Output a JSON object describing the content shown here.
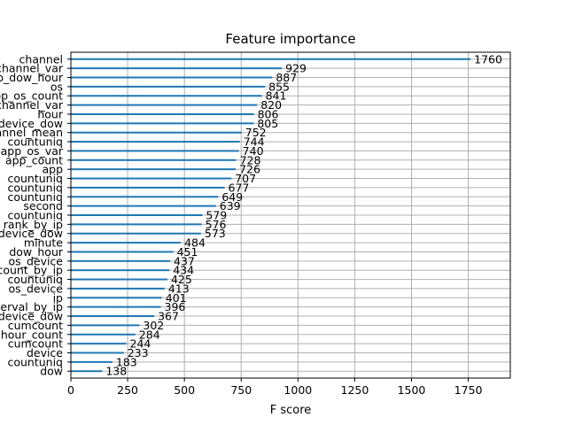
{
  "chart_data": {
    "type": "bar",
    "orientation": "horizontal",
    "title": "Feature importance",
    "xlabel": "F score",
    "ylabel": "",
    "xlim": [
      0,
      1935
    ],
    "xticks": [
      0,
      250,
      500,
      750,
      1000,
      1250,
      1500,
      1750
    ],
    "grid": true,
    "bar_color": "#1f77b4",
    "categories": [
      "channel",
      "channel_var",
      "app_dow_hour",
      "os",
      "app_os_count",
      "channel_var",
      "hour",
      "device_dow",
      "channel_mean",
      "countuniq",
      "app_os_var",
      "app_count",
      "app",
      "countuniq",
      "countuniq",
      "countuniq",
      "second",
      "countuniq",
      "rank_by_ip",
      "device_dow",
      "minute",
      "dow_hour",
      "os_device",
      "count_by_ip",
      "countuniq",
      "os_device",
      "ip",
      "interval_by_ip",
      "device_dow",
      "cumcount",
      "hour_count",
      "cumcount",
      "device",
      "countuniq",
      "dow"
    ],
    "values": [
      1760,
      929,
      887,
      855,
      841,
      820,
      806,
      805,
      752,
      744,
      740,
      728,
      726,
      707,
      677,
      649,
      639,
      579,
      576,
      573,
      484,
      451,
      437,
      434,
      425,
      413,
      401,
      396,
      367,
      302,
      284,
      244,
      233,
      183,
      138
    ]
  }
}
